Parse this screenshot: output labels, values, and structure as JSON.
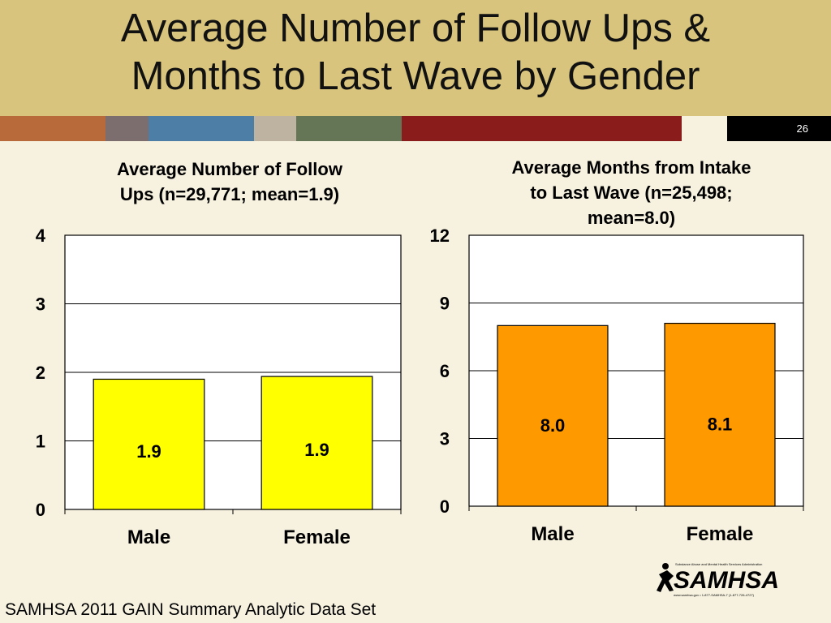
{
  "slide": {
    "title_line1": "Average Number of Follow Ups &",
    "title_line2": "Months to Last Wave by Gender",
    "number": "26",
    "source": "SAMHSA 2011 GAIN Summary Analytic Data Set",
    "logo_text": "SAMHSA",
    "logo_caption": "Substance Abuse and Mental Health Services Administration",
    "logo_footer": "www.samhsa.gov • 1-877-SAMHSA-7 (1-877-726-4727)"
  },
  "colors": {
    "header": "#d8c47c",
    "background": "#f7f2e0",
    "stripe": [
      "#b86a3a",
      "#7c6e6e",
      "#4d7ea6",
      "#bdb3a0",
      "#647656",
      "#8a1c1c",
      "#f7f2e0"
    ],
    "bar_left": "#ffff00",
    "bar_right": "#ff9900"
  },
  "chart_data": [
    {
      "type": "bar",
      "title_lines": [
        "Average Number of Follow",
        "Ups (n=29,771; mean=1.9)"
      ],
      "categories": [
        "Male",
        "Female"
      ],
      "values": [
        1.9,
        1.94
      ],
      "labels": [
        "1.9",
        "1.9"
      ],
      "ylim": [
        0,
        4
      ],
      "yticks": [
        0,
        1,
        2,
        3,
        4
      ],
      "grid": true,
      "xlabel": "",
      "ylabel": ""
    },
    {
      "type": "bar",
      "title_lines": [
        "Average Months from Intake",
        "to Last Wave (n=25,498;",
        "mean=8.0)"
      ],
      "categories": [
        "Male",
        "Female"
      ],
      "values": [
        8.0,
        8.1
      ],
      "labels": [
        "8.0",
        "8.1"
      ],
      "ylim": [
        0,
        12
      ],
      "yticks": [
        0,
        3,
        6,
        9,
        12
      ],
      "grid": true,
      "xlabel": "",
      "ylabel": ""
    }
  ]
}
